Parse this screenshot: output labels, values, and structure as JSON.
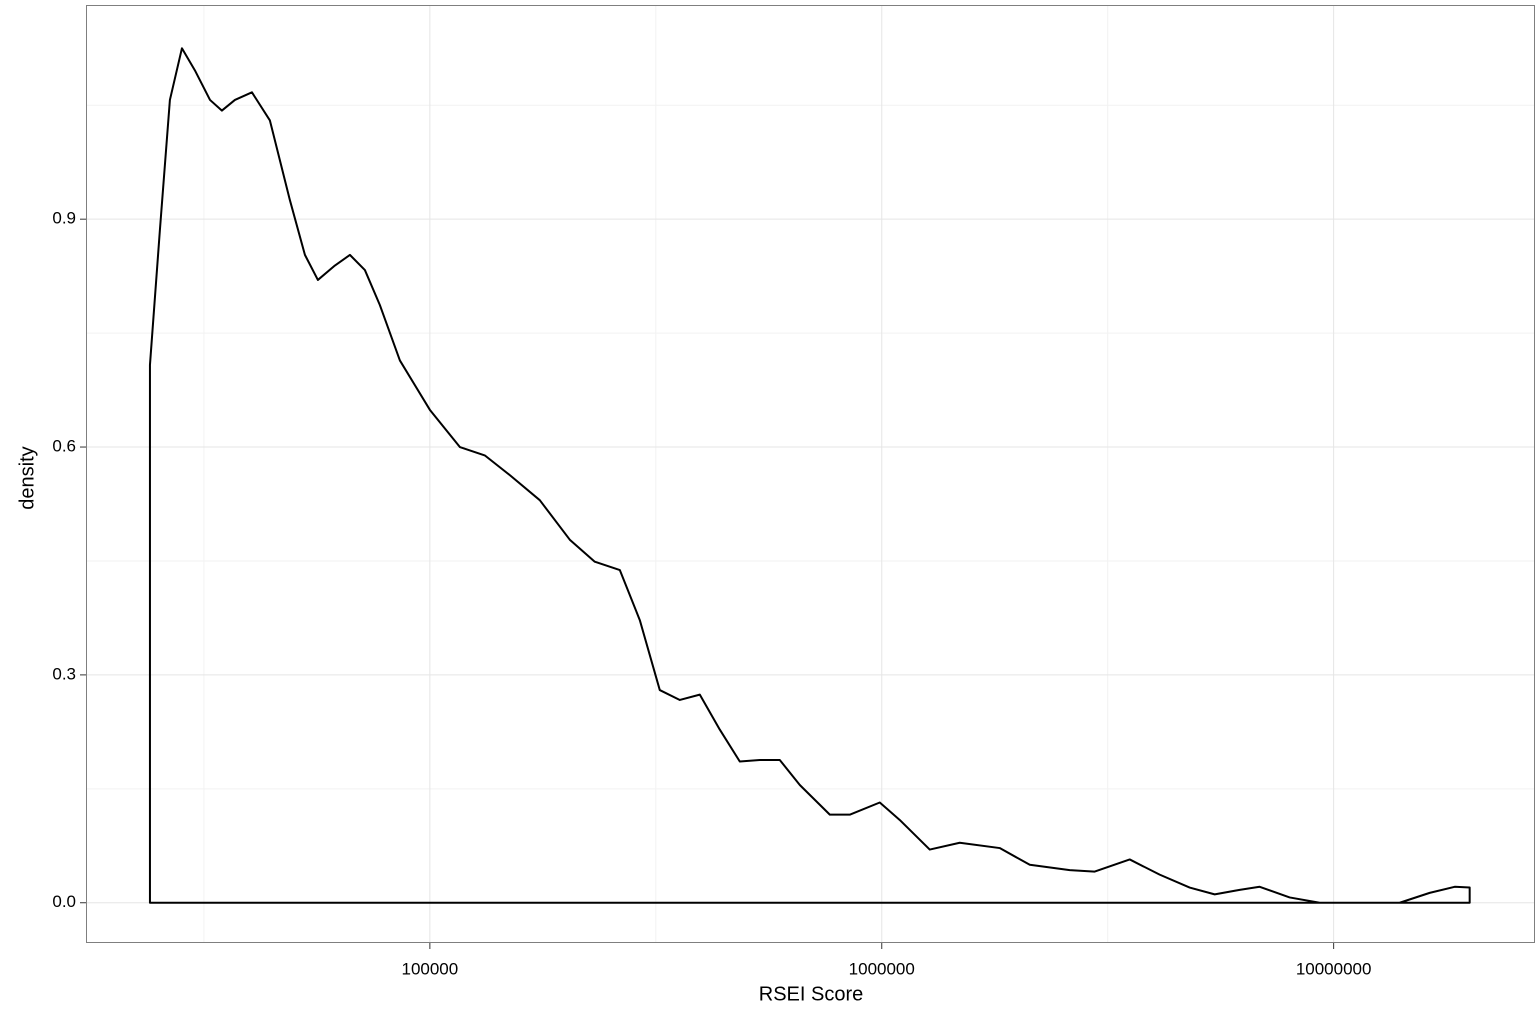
{
  "chart_data": {
    "type": "area",
    "x_label": "RSEI Score",
    "y_label": "density",
    "x": [
      24020,
      24020,
      25270,
      26590,
      28270,
      30200,
      32620,
      34660,
      37030,
      40390,
      44260,
      49010,
      52910,
      56520,
      61640,
      66530,
      71820,
      77500,
      85830,
      100000,
      116500,
      132300,
      150300,
      175100,
      204000,
      231700,
      263300,
      291500,
      322700,
      357400,
      395700,
      438100,
      485100,
      537200,
      594700,
      658700,
      767400,
      849700,
      989900,
      1096000,
      1277000,
      1488000,
      1824000,
      2126000,
      2606000,
      2960000,
      3538000,
      4121000,
      4802000,
      5455000,
      6194000,
      6860000,
      7992000,
      9311000,
      14000000,
      16310000,
      18530000,
      20000000,
      20000000
    ],
    "values": [
      0,
      0.708,
      0.886,
      1.057,
      1.125,
      1.096,
      1.057,
      1.043,
      1.057,
      1.067,
      1.03,
      0.925,
      0.853,
      0.82,
      0.839,
      0.853,
      0.833,
      0.787,
      0.714,
      0.649,
      0.6,
      0.589,
      0.563,
      0.53,
      0.478,
      0.449,
      0.438,
      0.372,
      0.28,
      0.267,
      0.274,
      0.228,
      0.186,
      0.188,
      0.188,
      0.155,
      0.116,
      0.116,
      0.132,
      0.109,
      0.07,
      0.079,
      0.072,
      0.05,
      0.043,
      0.041,
      0.057,
      0.037,
      0.02,
      0.011,
      0.017,
      0.021,
      0.007,
      0,
      0,
      0.013,
      0.021,
      0.02,
      0
    ],
    "color": "#000000",
    "xlog": true,
    "xlim": [
      17340,
      27900000
    ],
    "xticks": [
      100000,
      1000000,
      10000000
    ],
    "xminor": [
      31623,
      316228,
      3162278
    ],
    "ylim": [
      -0.053,
      1.182
    ],
    "yticks": [
      {
        "value": 0,
        "label": "0.0"
      },
      0.3,
      0.6,
      0.9
    ],
    "yminor": [
      0.15,
      0.45,
      0.75,
      1.05
    ],
    "grid": true
  }
}
